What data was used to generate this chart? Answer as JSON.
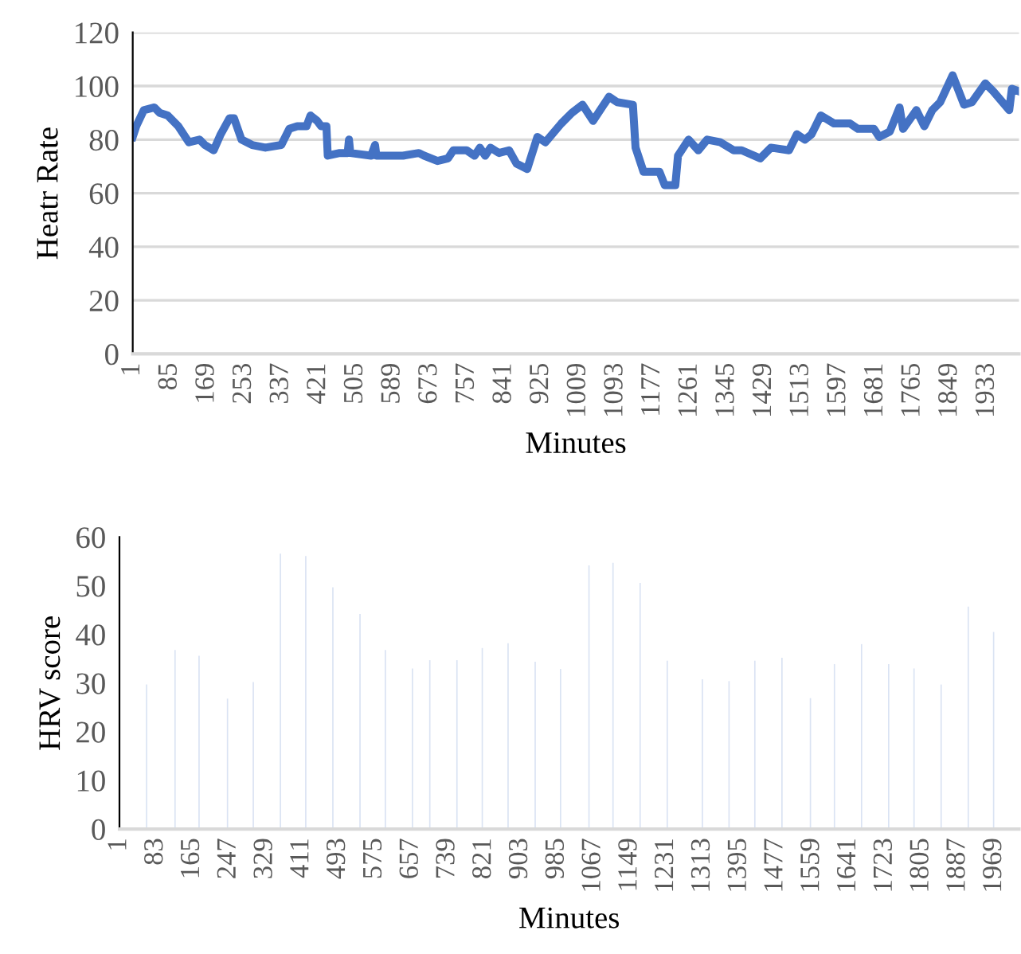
{
  "chart_data": [
    {
      "type": "line",
      "xlabel": "Minutes",
      "ylabel": "Heatr Rate",
      "ylim": [
        0,
        120
      ],
      "yticks": [
        0,
        20,
        40,
        60,
        80,
        100,
        120
      ],
      "xlim": [
        1,
        2005
      ],
      "xticks": [
        1,
        85,
        169,
        253,
        337,
        421,
        505,
        589,
        673,
        757,
        841,
        925,
        1009,
        1093,
        1177,
        1261,
        1345,
        1429,
        1513,
        1597,
        1681,
        1765,
        1849,
        1933
      ],
      "grid": "y",
      "marker": "none",
      "line_style": "solid",
      "series": [
        {
          "color": "#4472c4",
          "x": [
            1,
            9,
            26,
            50,
            62,
            80,
            104,
            128,
            152,
            164,
            184,
            200,
            220,
            230,
            247,
            271,
            301,
            337,
            355,
            373,
            394,
            403,
            418,
            427,
            439,
            442,
            469,
            487,
            490,
            493,
            540,
            549,
            552,
            612,
            648,
            660,
            690,
            714,
            726,
            756,
            774,
            786,
            798,
            810,
            829,
            852,
            869,
            893,
            916,
            934,
            970,
            994,
            1018,
            1042,
            1078,
            1096,
            1132,
            1138,
            1156,
            1192,
            1204,
            1228,
            1234,
            1258,
            1280,
            1300,
            1330,
            1360,
            1378,
            1420,
            1444,
            1485,
            1503,
            1521,
            1536,
            1557,
            1587,
            1623,
            1641,
            1677,
            1689,
            1713,
            1735,
            1743,
            1773,
            1791,
            1809,
            1827,
            1855,
            1881,
            1899,
            1929,
            1947,
            1983,
            1989,
            2005
          ],
          "values": [
            81,
            85,
            91,
            92,
            90,
            89,
            85,
            79,
            80,
            78,
            76,
            82,
            88,
            88,
            80,
            78,
            77,
            78,
            84,
            85,
            85,
            89,
            87,
            85,
            85,
            74,
            75,
            75,
            80,
            75,
            74,
            78,
            74,
            74,
            75,
            74,
            72,
            73,
            76,
            76,
            74,
            77,
            74,
            77,
            75,
            76,
            71,
            69,
            81,
            79,
            86,
            90,
            93,
            87,
            96,
            94,
            93,
            77,
            68,
            68,
            63,
            63,
            74,
            80,
            76,
            80,
            79,
            76,
            76,
            73,
            77,
            76,
            82,
            80,
            82,
            89,
            86,
            86,
            84,
            84,
            81,
            83,
            92,
            84,
            91,
            85,
            91,
            94,
            104,
            93,
            94,
            101,
            98,
            91,
            99,
            98
          ]
        }
      ]
    },
    {
      "type": "bar",
      "xlabel": "Minutes",
      "ylabel": "HRV score",
      "ylim": [
        0,
        60
      ],
      "yticks": [
        0,
        10,
        20,
        30,
        40,
        50,
        60
      ],
      "xlim": [
        1,
        2024
      ],
      "xticks": [
        1,
        83,
        165,
        247,
        329,
        411,
        493,
        575,
        657,
        739,
        821,
        903,
        985,
        1067,
        1149,
        1231,
        1313,
        1395,
        1477,
        1559,
        1641,
        1723,
        1805,
        1887,
        1969
      ],
      "grid": false,
      "series": [
        {
          "color": "#dae3f3",
          "x": [
            62,
            126,
            180,
            244,
            302,
            363,
            420,
            481,
            542,
            599,
            660,
            699,
            760,
            817,
            875,
            936,
            993,
            1057,
            1111,
            1172,
            1233,
            1312,
            1372,
            1430,
            1491,
            1555,
            1609,
            1670,
            1731,
            1788,
            1849,
            1910,
            1967
          ],
          "values": [
            29.7,
            36.8,
            35.6,
            26.8,
            30.2,
            56.6,
            56.1,
            49.7,
            44.2,
            36.8,
            33.0,
            34.7,
            34.7,
            37.2,
            38.2,
            34.4,
            32.9,
            54.2,
            54.7,
            50.6,
            34.6,
            30.8,
            30.4,
            34.6,
            35.2,
            26.9,
            33.9,
            38.0,
            33.9,
            33.0,
            29.7,
            45.7,
            40.5
          ]
        }
      ]
    }
  ]
}
